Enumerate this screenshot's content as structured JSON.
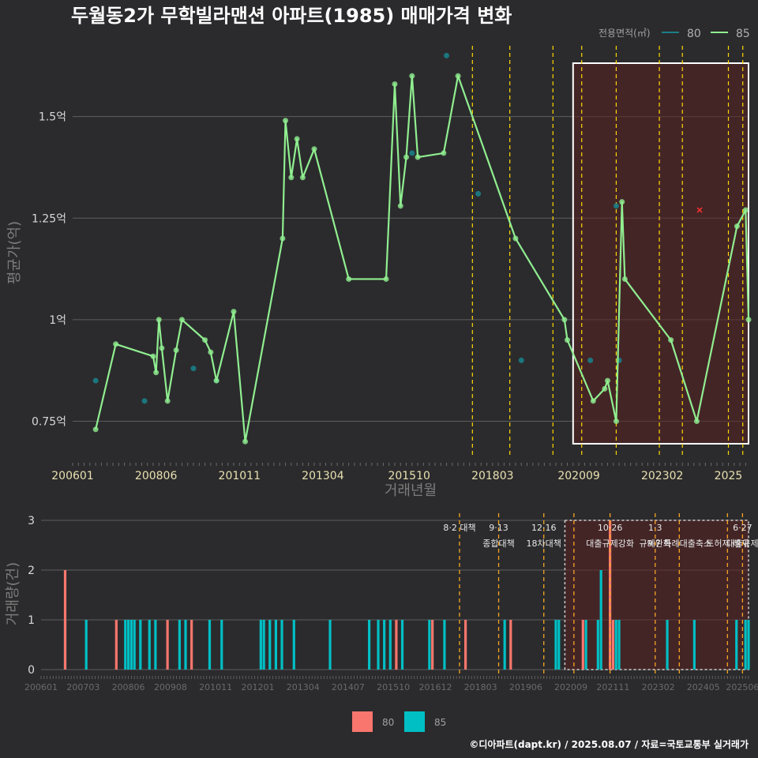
{
  "title": "두월동2가 무학빌라맨션 아파트(1985) 매매가격 변화",
  "footer": "©디아파트(dapt.kr) / 2025.08.07 / 자료=국토교통부 실거래가",
  "colors": {
    "bg": "#2b2b2d",
    "series80": "#1a7e86",
    "series85": "#90ee90",
    "volume80": "#f8766d",
    "volume85": "#00bfc4",
    "policy": "#ffd700",
    "highlight": "#5a2020"
  },
  "chart_data": [
    {
      "type": "line",
      "title": "두월동2가 무학빌라맨션 아파트(1985) 매매가격 변화",
      "xlabel": "거래년월",
      "ylabel": "평균가(억)",
      "ylim": [
        0.65,
        1.68
      ],
      "x_range": [
        "2006-01",
        "2025-08"
      ],
      "x_ticks": [
        "200601",
        "200806",
        "201011",
        "201304",
        "201510",
        "201803",
        "202009",
        "202302",
        "2025"
      ],
      "y_ticks": [
        {
          "value": 0.75,
          "label": "0.75억"
        },
        {
          "value": 1.0,
          "label": "1억"
        },
        {
          "value": 1.25,
          "label": "1.25억"
        },
        {
          "value": 1.5,
          "label": "1.5억"
        }
      ],
      "legend": {
        "title": "전용면적(㎡)",
        "placement": "top-right",
        "items": [
          "80",
          "85"
        ]
      },
      "policy_lines": [
        "2017-08",
        "2018-09",
        "2019-12",
        "2020-10",
        "2021-10",
        "2023-01",
        "2023-09",
        "2025-01",
        "2025-06"
      ],
      "highlight_range": [
        "2020-07",
        "2025-08"
      ],
      "marker_x": {
        "x": "2024-03",
        "y": 1.27
      },
      "series": [
        {
          "name": "80",
          "points": [
            {
              "x": "2006-09",
              "y": 0.85
            },
            {
              "x": "2008-02",
              "y": 0.8
            },
            {
              "x": "2009-07",
              "y": 0.88
            },
            {
              "x": "2010-03",
              "y": 0.85
            },
            {
              "x": "2015-11",
              "y": 1.41
            },
            {
              "x": "2016-11",
              "y": 1.65
            },
            {
              "x": "2017-10",
              "y": 1.31
            },
            {
              "x": "2019-01",
              "y": 0.9
            },
            {
              "x": "2021-01",
              "y": 0.9
            },
            {
              "x": "2021-10",
              "y": 1.28
            },
            {
              "x": "2021-11",
              "y": 0.9
            }
          ]
        },
        {
          "name": "85",
          "points": [
            {
              "x": "2006-09",
              "y": 0.73
            },
            {
              "x": "2007-04",
              "y": 0.94
            },
            {
              "x": "2008-05",
              "y": 0.91
            },
            {
              "x": "2008-06",
              "y": 0.87
            },
            {
              "x": "2008-07",
              "y": 1.0
            },
            {
              "x": "2008-08",
              "y": 0.93
            },
            {
              "x": "2008-10",
              "y": 0.8
            },
            {
              "x": "2009-01",
              "y": 0.925
            },
            {
              "x": "2009-03",
              "y": 1.0
            },
            {
              "x": "2009-11",
              "y": 0.95
            },
            {
              "x": "2010-01",
              "y": 0.92
            },
            {
              "x": "2010-03",
              "y": 0.85
            },
            {
              "x": "2010-09",
              "y": 1.02
            },
            {
              "x": "2011-01",
              "y": 0.7
            },
            {
              "x": "2012-02",
              "y": 1.2
            },
            {
              "x": "2012-03",
              "y": 1.49
            },
            {
              "x": "2012-05",
              "y": 1.35
            },
            {
              "x": "2012-07",
              "y": 1.445
            },
            {
              "x": "2012-09",
              "y": 1.35
            },
            {
              "x": "2013-01",
              "y": 1.42
            },
            {
              "x": "2014-01",
              "y": 1.1
            },
            {
              "x": "2015-02",
              "y": 1.1
            },
            {
              "x": "2015-05",
              "y": 1.58
            },
            {
              "x": "2015-07",
              "y": 1.28
            },
            {
              "x": "2015-09",
              "y": 1.4
            },
            {
              "x": "2015-11",
              "y": 1.6
            },
            {
              "x": "2016-01",
              "y": 1.4
            },
            {
              "x": "2016-10",
              "y": 1.41
            },
            {
              "x": "2017-03",
              "y": 1.6
            },
            {
              "x": "2018-11",
              "y": 1.2
            },
            {
              "x": "2020-04",
              "y": 1.0
            },
            {
              "x": "2020-05",
              "y": 0.95
            },
            {
              "x": "2021-02",
              "y": 0.8
            },
            {
              "x": "2021-06",
              "y": 0.83
            },
            {
              "x": "2021-07",
              "y": 0.85
            },
            {
              "x": "2021-10",
              "y": 0.75
            },
            {
              "x": "2021-12",
              "y": 1.29
            },
            {
              "x": "2022-01",
              "y": 1.1
            },
            {
              "x": "2023-05",
              "y": 0.95
            },
            {
              "x": "2024-02",
              "y": 0.75
            },
            {
              "x": "2025-04",
              "y": 1.23
            },
            {
              "x": "2025-07",
              "y": 1.27
            },
            {
              "x": "2025-08",
              "y": 1.0
            }
          ]
        }
      ]
    },
    {
      "type": "bar",
      "xlabel": "",
      "ylabel": "거래량(건)",
      "ylim": [
        0,
        3
      ],
      "y_ticks": [
        "0",
        "1",
        "2",
        "3"
      ],
      "x_ticks": [
        "200601",
        "200703",
        "200806",
        "200908",
        "201011",
        "201201",
        "201304",
        "201407",
        "201510",
        "201612",
        "201803",
        "201906",
        "202009",
        "202111",
        "202302",
        "202405",
        "202506"
      ],
      "legend": {
        "placement": "bottom",
        "items": [
          "80",
          "85"
        ]
      },
      "policy_lines": [
        {
          "x": "2017-08",
          "label": "8·2 대책",
          "label2": ""
        },
        {
          "x": "2018-09",
          "label": "9·13",
          "label2": "종합대책"
        },
        {
          "x": "2019-12",
          "label": "12·16",
          "label2": "18차대책"
        },
        {
          "x": "2020-10",
          "label": "",
          "label2": ""
        },
        {
          "x": "2021-10",
          "label": "10·26",
          "label2": "대출규제강화"
        },
        {
          "x": "2023-01",
          "label": "1·3",
          "label2": "규제완화"
        },
        {
          "x": "2023-09",
          "label": "",
          "label2": "9·7 특례대출축소"
        },
        {
          "x": "2025-01",
          "label": "",
          "label2": "토허제 해제"
        },
        {
          "x": "2025-06",
          "label": "6·27",
          "label2": "대출규제"
        }
      ],
      "series": [
        {
          "name": "80",
          "bars": [
            {
              "x": "2006-09",
              "y": 2
            },
            {
              "x": "2008-02",
              "y": 1
            },
            {
              "x": "2009-07",
              "y": 1
            },
            {
              "x": "2010-03",
              "y": 1
            },
            {
              "x": "2015-11",
              "y": 1
            },
            {
              "x": "2016-11",
              "y": 1
            },
            {
              "x": "2017-10",
              "y": 1
            },
            {
              "x": "2019-01",
              "y": 1
            },
            {
              "x": "2021-01",
              "y": 1
            },
            {
              "x": "2021-10",
              "y": 3
            },
            {
              "x": "2021-11",
              "y": 1
            }
          ]
        },
        {
          "name": "85",
          "bars": [
            {
              "x": "2006-09",
              "y": 1
            },
            {
              "x": "2007-04",
              "y": 1
            },
            {
              "x": "2008-05",
              "y": 1
            },
            {
              "x": "2008-06",
              "y": 1
            },
            {
              "x": "2008-07",
              "y": 1
            },
            {
              "x": "2008-08",
              "y": 1
            },
            {
              "x": "2008-10",
              "y": 1
            },
            {
              "x": "2009-01",
              "y": 1
            },
            {
              "x": "2009-03",
              "y": 1
            },
            {
              "x": "2009-11",
              "y": 1
            },
            {
              "x": "2010-01",
              "y": 1
            },
            {
              "x": "2010-09",
              "y": 1
            },
            {
              "x": "2011-01",
              "y": 1
            },
            {
              "x": "2012-02",
              "y": 1
            },
            {
              "x": "2012-03",
              "y": 1
            },
            {
              "x": "2012-05",
              "y": 1
            },
            {
              "x": "2012-07",
              "y": 1
            },
            {
              "x": "2012-09",
              "y": 1
            },
            {
              "x": "2013-01",
              "y": 1
            },
            {
              "x": "2014-01",
              "y": 1
            },
            {
              "x": "2015-02",
              "y": 1
            },
            {
              "x": "2015-05",
              "y": 1
            },
            {
              "x": "2015-07",
              "y": 1
            },
            {
              "x": "2015-09",
              "y": 1
            },
            {
              "x": "2016-01",
              "y": 1
            },
            {
              "x": "2016-10",
              "y": 1
            },
            {
              "x": "2017-03",
              "y": 1
            },
            {
              "x": "2018-11",
              "y": 1
            },
            {
              "x": "2020-04",
              "y": 1
            },
            {
              "x": "2020-05",
              "y": 1
            },
            {
              "x": "2021-02",
              "y": 1
            },
            {
              "x": "2021-06",
              "y": 1
            },
            {
              "x": "2021-07",
              "y": 2
            },
            {
              "x": "2021-12",
              "y": 1
            },
            {
              "x": "2022-01",
              "y": 1
            },
            {
              "x": "2023-05",
              "y": 1
            },
            {
              "x": "2024-02",
              "y": 1
            },
            {
              "x": "2025-04",
              "y": 1
            },
            {
              "x": "2025-07",
              "y": 1
            },
            {
              "x": "2025-08",
              "y": 1
            }
          ]
        }
      ]
    }
  ]
}
